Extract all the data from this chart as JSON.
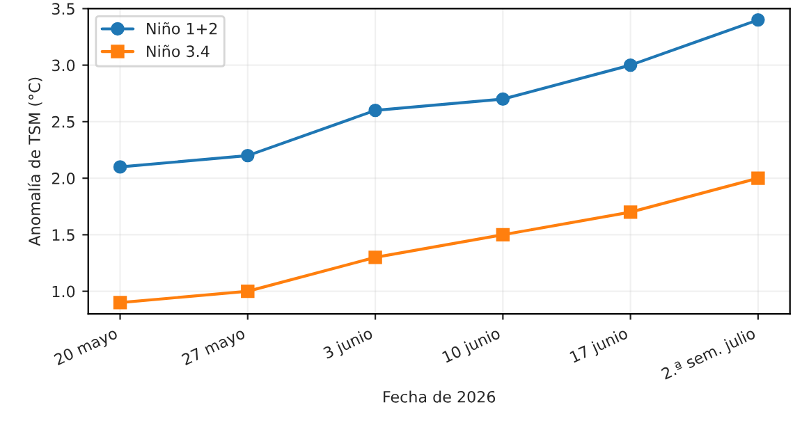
{
  "chart_data": {
    "type": "line",
    "xlabel": "Fecha de 2026",
    "ylabel": "Anomalía de TSM (°C)",
    "categories": [
      "20 mayo",
      "27 mayo",
      "3 junio",
      "10 junio",
      "17 junio",
      "2.ª sem. julio"
    ],
    "series": [
      {
        "name": "Niño 1+2",
        "color": "#1f77b4",
        "values": [
          2.1,
          2.2,
          2.6,
          2.7,
          3.0,
          3.4
        ],
        "marker": "circle"
      },
      {
        "name": "Niño 3.4",
        "color": "#ff7f0e",
        "values": [
          0.9,
          1.0,
          1.3,
          1.5,
          1.7,
          2.0
        ],
        "marker": "square"
      }
    ],
    "ylim": [
      0.8,
      3.5
    ],
    "yticks": [
      {
        "value": 1,
        "label": "1.0"
      },
      1.5,
      {
        "value": 2,
        "label": "2.0"
      },
      2.5,
      {
        "value": 3,
        "label": "3.0"
      },
      3.5
    ],
    "grid": true,
    "legend": "top left",
    "line_style": "solid"
  }
}
